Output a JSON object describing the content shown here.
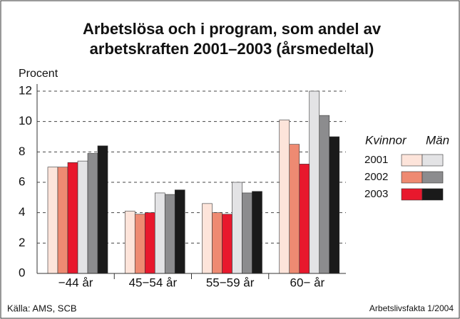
{
  "chart_data": {
    "type": "bar",
    "title": [
      "Arbetslösa och i program, som andel av",
      "arbetskraften 2001–2003 (årsmedeltal)"
    ],
    "y_label": "Procent",
    "source": "Källa: AMS, SCB",
    "credit": "Arbetslivsfakta 1/2004",
    "categories": [
      "−44 år",
      "45−54 år",
      "55−59 år",
      "60− år"
    ],
    "groups": [
      "Kvinnor",
      "Män"
    ],
    "series": [
      {
        "name": "2001",
        "colors": [
          "#fde4da",
          "#e3e3e5"
        ],
        "values": [
          [
            7.0,
            4.1,
            4.6,
            10.1
          ],
          [
            7.4,
            5.3,
            6.0,
            12.0
          ]
        ]
      },
      {
        "name": "2002",
        "colors": [
          "#ee8a72",
          "#8c8c8e"
        ],
        "values": [
          [
            7.0,
            3.9,
            4.0,
            8.5
          ],
          [
            7.9,
            5.2,
            5.3,
            10.4
          ]
        ]
      },
      {
        "name": "2003",
        "colors": [
          "#e8182d",
          "#1a1a1a"
        ],
        "values": [
          [
            7.3,
            4.0,
            3.9,
            7.2
          ],
          [
            8.4,
            5.5,
            5.4,
            9.0
          ]
        ]
      }
    ],
    "ylim": [
      0,
      12
    ],
    "yticks": [
      0,
      2,
      4,
      6,
      8,
      10,
      12
    ],
    "grid": true
  }
}
